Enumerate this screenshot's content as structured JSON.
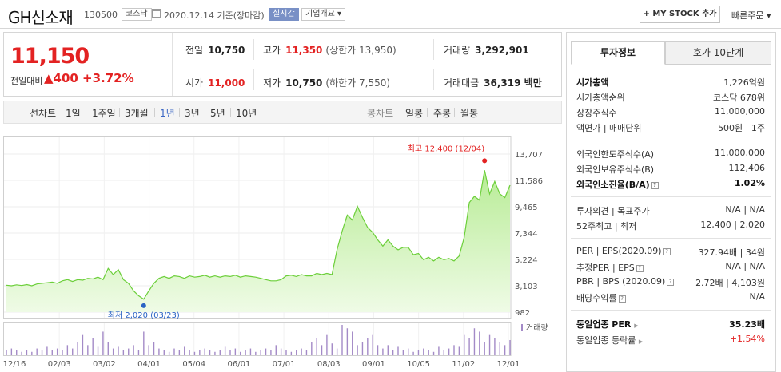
{
  "header": {
    "company_name": "GH신소재",
    "code": "130500",
    "market_badge": "코스닥",
    "date_text": "2020.12.14  기준(장마감)",
    "realtime_badge": "실시간",
    "company_info": "기업개요 ▾",
    "mystock_button": "+ MY STOCK 추가",
    "quick_order": "빠른주문 ▾"
  },
  "price": {
    "current": "11,150",
    "diff_label": "전일대비",
    "diff_value": "▲400",
    "diff_pct": "+3.72%",
    "prev_close_label": "전일",
    "prev_close": "10,750",
    "high_label": "고가",
    "high": "11,350",
    "upper_limit": "(상한가 13,950)",
    "volume_label": "거래량",
    "volume": "3,292,901",
    "open_label": "시가",
    "open": "11,000",
    "low_label": "저가",
    "low": "10,750",
    "lower_limit": "(하한가 7,550)",
    "amount_label": "거래대금",
    "amount": "36,319 백만"
  },
  "period_bar": {
    "line_chart_label": "선차트",
    "periods": [
      "1일",
      "1주일",
      "3개월",
      "1년",
      "3년",
      "5년",
      "10년"
    ],
    "active_period": "1년",
    "candle_label": "봉차트",
    "candles": [
      "일봉",
      "주봉",
      "월봉"
    ]
  },
  "chart_data": {
    "type": "area",
    "x_tick_labels": [
      "12/16",
      "02/03",
      "03/02",
      "04/01",
      "05/04",
      "06/01",
      "07/01",
      "08/03",
      "09/01",
      "10/05",
      "11/02",
      "12/01"
    ],
    "y_tick_labels": [
      "13,707",
      "11,586",
      "9,465",
      "7,344",
      "5,224",
      "3,103",
      "982"
    ],
    "ylim": [
      982,
      13707
    ],
    "series": [
      {
        "values": [
          3150,
          3100,
          3180,
          3120,
          3200,
          3100,
          3250,
          3300,
          3350,
          3400,
          3300,
          3500,
          3600,
          3450,
          3600,
          3550,
          3700,
          3650,
          3800,
          3600,
          4500,
          4000,
          4400,
          3600,
          3300,
          2700,
          2300,
          2020,
          2700,
          3300,
          3700,
          3850,
          3700,
          3900,
          3850,
          3700,
          3900,
          3800,
          3850,
          3950,
          3800,
          3900,
          3800,
          3900,
          3850,
          3950,
          3800,
          3900,
          3850,
          3800,
          3700,
          3600,
          3500,
          3500,
          3600,
          3900,
          3950,
          3850,
          4000,
          3900,
          3900,
          4100,
          4000,
          4100,
          4000,
          6000,
          7500,
          8800,
          8400,
          9500,
          8600,
          7800,
          7400,
          6800,
          6300,
          6800,
          6300,
          6000,
          6200,
          6200,
          5600,
          5700,
          5200,
          5400,
          5100,
          5400,
          5200,
          5300,
          5100,
          5500,
          7000,
          9800,
          10300,
          10000,
          12400,
          10500,
          11500,
          10500,
          10200,
          11200
        ]
      }
    ],
    "annotations": {
      "high_label": "최고 12,400 (12/04)",
      "low_label": "최저 2,020 (03/23)"
    },
    "volume_label": "거래량",
    "volume_values": [
      3,
      4,
      3,
      2,
      3,
      2,
      4,
      3,
      5,
      3,
      4,
      3,
      6,
      4,
      8,
      12,
      6,
      10,
      5,
      14,
      8,
      4,
      5,
      3,
      4,
      6,
      3,
      14,
      6,
      8,
      4,
      3,
      2,
      4,
      3,
      5,
      3,
      2,
      3,
      4,
      3,
      2,
      3,
      5,
      3,
      4,
      2,
      3,
      4,
      2,
      3,
      4,
      3,
      6,
      4,
      3,
      2,
      3,
      4,
      3,
      8,
      10,
      6,
      12,
      7,
      4,
      18,
      16,
      14,
      6,
      8,
      10,
      12,
      6,
      4,
      6,
      3,
      5,
      3,
      4,
      2,
      3,
      4,
      3,
      2,
      5,
      3,
      4,
      6,
      5,
      12,
      10,
      16,
      14,
      8,
      12,
      10,
      8,
      6,
      9
    ],
    "grid": true
  },
  "right_panel": {
    "tabs": [
      "투자정보",
      "호가 10단계"
    ],
    "market_cap_label": "시가총액",
    "market_cap": "1,226억원",
    "rank_label": "시가총액순위",
    "rank": "코스닥 678위",
    "shares_label": "상장주식수",
    "shares": "11,000,000",
    "par_label": "액면가 | 매매단위",
    "par": "500원 | 1주",
    "foreign_limit_label": "외국인한도주식수(A)",
    "foreign_limit": "11,000,000",
    "foreign_hold_label": "외국인보유주식수(B)",
    "foreign_hold": "112,406",
    "foreign_ratio_label": "외국인소진율(B/A)",
    "foreign_ratio": "1.02%",
    "opinion_label": "투자의견 | 목표주가",
    "opinion": "N/A | N/A",
    "week52_label": "52주최고 | 최저",
    "week52": "12,400 | 2,020",
    "per_label": "PER | EPS(2020.09)",
    "per": "327.94배 | 34원",
    "est_per_label": "추정PER | EPS",
    "est_per": "N/A | N/A",
    "pbr_label": "PBR | BPS (2020.09)",
    "pbr": "2.72배 | 4,103원",
    "div_label": "배당수익률",
    "div": "N/A",
    "sector_per_label": "동일업종 PER",
    "sector_per": "35.23배",
    "sector_change_label": "동일업종 등락률",
    "sector_change": "+1.54%"
  },
  "colors": {
    "up_red": "#e32222",
    "active_blue": "#3a66c4",
    "area_green": "#b8ec96",
    "line_green": "#6ccf3a"
  }
}
